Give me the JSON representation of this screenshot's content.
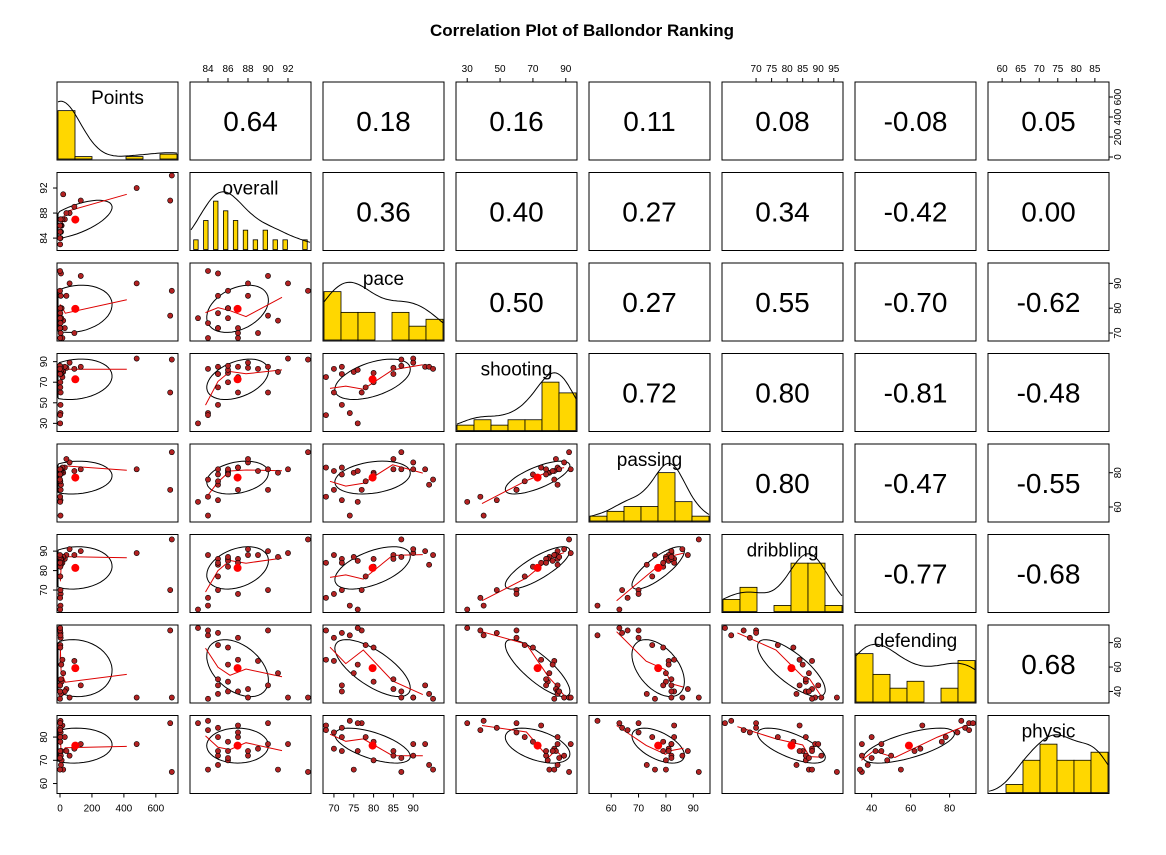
{
  "chart_data": {
    "type": "scatter",
    "title": "Correlation Plot of Ballondor Ranking",
    "variables": [
      "Points",
      "overall",
      "pace",
      "shooting",
      "passing",
      "dribbling",
      "defending",
      "physic"
    ],
    "ranges": {
      "Points": [
        0,
        720
      ],
      "overall": [
        82.5,
        94
      ],
      "pace": [
        68,
        97
      ],
      "shooting": [
        25,
        95
      ],
      "passing": [
        53,
        95
      ],
      "dribbling": [
        60,
        97
      ],
      "defending": [
        33,
        92
      ],
      "physic": [
        57,
        88
      ]
    },
    "ticks": {
      "Points": [
        0,
        200,
        400,
        600
      ],
      "overall": [
        84,
        86,
        88,
        90,
        92
      ],
      "pace": [
        70,
        75,
        80,
        85,
        90
      ],
      "shooting": [
        30,
        50,
        70,
        90
      ],
      "passing": [
        60,
        70,
        80,
        90
      ],
      "dribbling": [
        70,
        75,
        80,
        85,
        90,
        95
      ],
      "defending": [
        40,
        60,
        80
      ],
      "physic": [
        60,
        65,
        70,
        75,
        80,
        85
      ]
    },
    "left_ticks": {
      "overall": [
        84,
        88,
        92
      ],
      "shooting": [
        30,
        50,
        70,
        90
      ],
      "dribbling": [
        70,
        80,
        90
      ],
      "physic": [
        60,
        70,
        80
      ]
    },
    "right_ticks": {
      "Points": [
        0,
        200,
        400,
        600
      ],
      "pace": [
        70,
        80,
        90
      ],
      "passing": [
        60,
        80
      ],
      "defending": [
        40,
        60,
        80
      ]
    },
    "correlations": [
      [
        "0.64",
        "0.18",
        "0.16",
        "0.11",
        "0.08",
        "-0.08",
        "0.05"
      ],
      [
        "0.36",
        "0.40",
        "0.27",
        "0.34",
        "-0.42",
        "0.00"
      ],
      [
        "0.50",
        "0.27",
        "0.55",
        "-0.70",
        "-0.62"
      ],
      [
        "0.72",
        "0.80",
        "-0.81",
        "-0.48"
      ],
      [
        "0.80",
        "-0.47",
        "-0.55"
      ],
      [
        "-0.77",
        "-0.68"
      ],
      [
        "0.68"
      ]
    ],
    "players": [
      {
        "Points": 700,
        "overall": 94,
        "pace": 87,
        "shooting": 92,
        "passing": 92,
        "dribbling": 96,
        "defending": 35,
        "physic": 65
      },
      {
        "Points": 480,
        "overall": 92,
        "pace": 90,
        "shooting": 93,
        "passing": 82,
        "dribbling": 89,
        "defending": 35,
        "physic": 77
      },
      {
        "Points": 690,
        "overall": 90,
        "pace": 77,
        "shooting": 60,
        "passing": 70,
        "dribbling": 70,
        "defending": 90,
        "physic": 86
      },
      {
        "Points": 130,
        "overall": 90,
        "pace": 93,
        "shooting": 85,
        "passing": 82,
        "dribbling": 90,
        "defending": 45,
        "physic": 77
      },
      {
        "Points": 90,
        "overall": 89,
        "pace": 70,
        "shooting": 83,
        "passing": 81,
        "dribbling": 88,
        "defending": 65,
        "physic": 75
      },
      {
        "Points": 60,
        "overall": 88,
        "pace": 90,
        "shooting": 89,
        "passing": 86,
        "dribbling": 91,
        "defending": 35,
        "physic": 72
      },
      {
        "Points": 40,
        "overall": 88,
        "pace": 85,
        "shooting": 84,
        "passing": 88,
        "dribbling": 88,
        "defending": 42,
        "physic": 74
      },
      {
        "Points": 30,
        "overall": 87,
        "pace": 72,
        "shooting": 85,
        "passing": 83,
        "dribbling": 86,
        "defending": 40,
        "physic": 80
      },
      {
        "Points": 20,
        "overall": 91,
        "pace": 75,
        "shooting": 80,
        "passing": 80,
        "dribbling": 87,
        "defending": 55,
        "physic": 66
      },
      {
        "Points": 15,
        "overall": 87,
        "pace": 68,
        "shooting": 75,
        "passing": 83,
        "dribbling": 84,
        "defending": 66,
        "physic": 85
      },
      {
        "Points": 10,
        "overall": 86,
        "pace": 80,
        "shooting": 79,
        "passing": 80,
        "dribbling": 86,
        "defending": 48,
        "physic": 70
      },
      {
        "Points": 8,
        "overall": 86,
        "pace": 76,
        "shooting": 82,
        "passing": 81,
        "dribbling": 85,
        "defending": 62,
        "physic": 74
      },
      {
        "Points": 6,
        "overall": 85,
        "pace": 94,
        "shooting": 85,
        "passing": 73,
        "dribbling": 83,
        "defending": 38,
        "physic": 68
      },
      {
        "Points": 5,
        "overall": 85,
        "pace": 85,
        "shooting": 78,
        "passing": 82,
        "dribbling": 86,
        "defending": 50,
        "physic": 72
      },
      {
        "Points": 4,
        "overall": 87,
        "pace": 70,
        "shooting": 60,
        "passing": 70,
        "dribbling": 68,
        "defending": 84,
        "physic": 82
      },
      {
        "Points": 3,
        "overall": 85,
        "pace": 72,
        "shooting": 48,
        "passing": 64,
        "dribbling": 70,
        "defending": 88,
        "physic": 84
      },
      {
        "Points": 3,
        "overall": 84,
        "pace": 74,
        "shooting": 40,
        "passing": 55,
        "dribbling": 62,
        "defending": 86,
        "physic": 87
      },
      {
        "Points": 2,
        "overall": 85,
        "pace": 78,
        "shooting": 65,
        "passing": 75,
        "dribbling": 77,
        "defending": 78,
        "physic": 80
      },
      {
        "Points": 2,
        "overall": 86,
        "pace": 80,
        "shooting": 70,
        "passing": 79,
        "dribbling": 82,
        "defending": 76,
        "physic": 78
      },
      {
        "Points": 1,
        "overall": 84,
        "pace": 68,
        "shooting": 38,
        "passing": 66,
        "dribbling": 66,
        "defending": 90,
        "physic": 83
      },
      {
        "Points": 1,
        "overall": 83,
        "pace": 76,
        "shooting": 30,
        "passing": 63,
        "dribbling": 60,
        "defending": 92,
        "physic": 86
      },
      {
        "Points": 1,
        "overall": 85,
        "pace": 72,
        "shooting": 78,
        "passing": 79,
        "dribbling": 84,
        "defending": 45,
        "physic": 74
      },
      {
        "Points": 0,
        "overall": 86,
        "pace": 87,
        "shooting": 86,
        "passing": 82,
        "dribbling": 87,
        "defending": 40,
        "physic": 71
      },
      {
        "Points": 0,
        "overall": 84,
        "pace": 95,
        "shooting": 83,
        "passing": 76,
        "dribbling": 88,
        "defending": 34,
        "physic": 66
      }
    ],
    "point_color": "#b22222",
    "center_color": "#ff0000",
    "smooth_color": "#dd0000",
    "bar_color": "#ffd700",
    "grid": false
  }
}
